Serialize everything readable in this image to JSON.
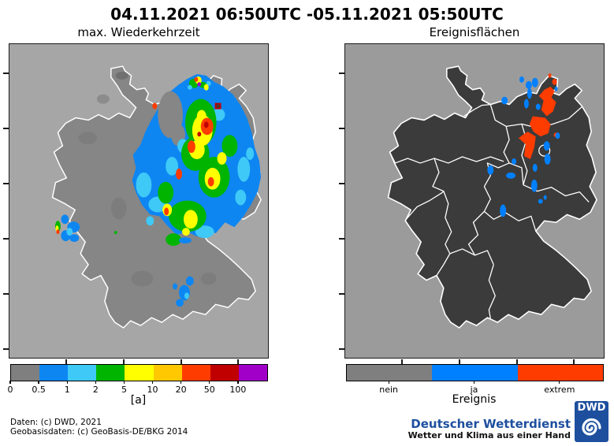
{
  "title": "04.11.2021 06:50UTC -05.11.2021 05:50UTC",
  "left_map": {
    "subtitle": "max. Wiederkehrzeit"
  },
  "right_map": {
    "subtitle": "Ereignisflächen"
  },
  "colorbar_left": {
    "unit": "[a]",
    "tick_labels": [
      "0",
      "0.5",
      "1",
      "2",
      "5",
      "10",
      "20",
      "50",
      "100"
    ],
    "colors": [
      "#7f7f7f",
      "#0d86f2",
      "#3ec9f7",
      "#00b400",
      "#ffff00",
      "#ffc800",
      "#ff3c00",
      "#c00000",
      "#a000c8"
    ]
  },
  "colorbar_right": {
    "axis_label": "Ereignis",
    "tick_labels": [
      "nein",
      "ja",
      "extrem"
    ],
    "colors": [
      "#7f7f7f",
      "#0080ff",
      "#ff3c00"
    ]
  },
  "credits": {
    "line1": "Daten: (c) DWD, 2021",
    "line2": "Geobasisdaten: (c) GeoBasis-DE/BKG 2014"
  },
  "branding": {
    "logo_text": "DWD",
    "org": "Deutscher Wetterdienst",
    "slogan": "Wetter und Klima aus einer Hand"
  },
  "colors": {
    "brand_blue": "#1d4f9e",
    "left_map_background": "#a6a6a6",
    "right_map_background": "#9b9b9b",
    "left_land": "#868686",
    "right_land": "#3b3b3b",
    "event_yes_blue": "#0080ff",
    "event_extreme_orange": "#ff3c00"
  }
}
